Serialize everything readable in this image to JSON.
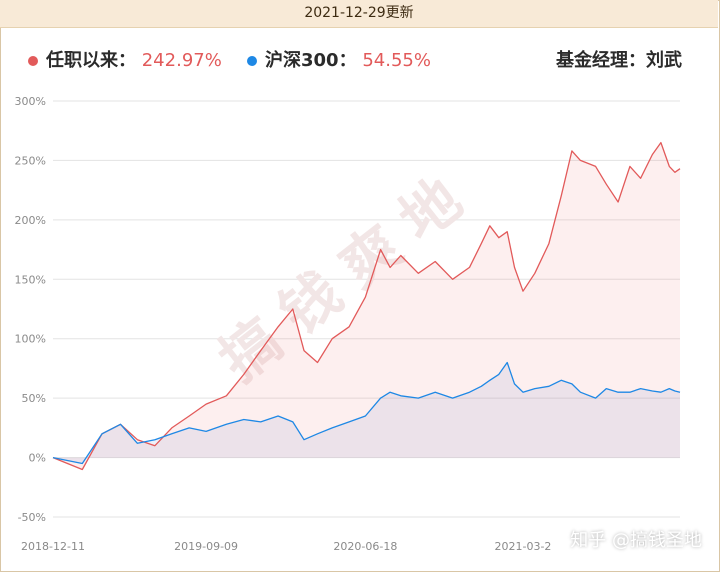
{
  "header": {
    "date_label": "2021-12-29更新"
  },
  "legend": {
    "fund": {
      "label": "任职以来：",
      "value": "242.97%",
      "color": "#e25a5a"
    },
    "index": {
      "label": "沪深300：",
      "value": "54.55%",
      "color": "#1e88e5"
    },
    "manager": "基金经理：刘武"
  },
  "watermark": {
    "center": "搞钱爽地",
    "corner": "知乎 @搞钱圣地"
  },
  "chart_data": {
    "type": "line",
    "x": [
      "2018-12-11",
      "2019-02-01",
      "2019-03-08",
      "2019-04-10",
      "2019-05-10",
      "2019-06-10",
      "2019-07-10",
      "2019-08-10",
      "2019-09-09",
      "2019-10-15",
      "2019-11-15",
      "2019-12-15",
      "2020-01-15",
      "2020-02-10",
      "2020-03-01",
      "2020-03-25",
      "2020-04-20",
      "2020-05-20",
      "2020-06-18",
      "2020-07-15",
      "2020-08-01",
      "2020-08-20",
      "2020-09-20",
      "2020-10-20",
      "2020-11-20",
      "2020-12-20",
      "2021-01-10",
      "2021-01-25",
      "2021-02-10",
      "2021-02-25",
      "2021-03-10",
      "2021-03-25",
      "2021-04-15",
      "2021-05-10",
      "2021-06-01",
      "2021-06-20",
      "2021-07-05",
      "2021-08-01",
      "2021-08-20",
      "2021-09-10",
      "2021-10-01",
      "2021-10-20",
      "2021-11-10",
      "2021-11-25",
      "2021-12-10",
      "2021-12-20",
      "2021-12-29"
    ],
    "series": [
      {
        "name": "任职以来",
        "color": "#e25a5a",
        "values": [
          0,
          -10,
          20,
          28,
          15,
          10,
          25,
          35,
          45,
          52,
          70,
          90,
          110,
          125,
          90,
          80,
          100,
          110,
          135,
          175,
          160,
          170,
          155,
          165,
          150,
          160,
          180,
          195,
          185,
          190,
          160,
          140,
          155,
          180,
          220,
          258,
          250,
          245,
          230,
          215,
          245,
          235,
          255,
          265,
          245,
          240,
          243
        ]
      },
      {
        "name": "沪深300",
        "color": "#1e88e5",
        "values": [
          0,
          -5,
          20,
          28,
          12,
          15,
          20,
          25,
          22,
          28,
          32,
          30,
          35,
          30,
          15,
          20,
          25,
          30,
          35,
          50,
          55,
          52,
          50,
          55,
          50,
          55,
          60,
          65,
          70,
          80,
          62,
          55,
          58,
          60,
          65,
          62,
          55,
          50,
          58,
          55,
          55,
          58,
          56,
          55,
          58,
          56,
          55
        ]
      }
    ],
    "x_ticks": [
      "2018-12-11",
      "2019-09-09",
      "2020-06-18",
      "2021-03-2"
    ],
    "y_ticks": [
      -50,
      0,
      50,
      100,
      150,
      200,
      250,
      300
    ],
    "y_tick_labels": [
      "-50%",
      "0%",
      "50%",
      "100%",
      "150%",
      "200%",
      "250%",
      "300%"
    ],
    "ylim": [
      -50,
      300
    ],
    "grid": true
  }
}
